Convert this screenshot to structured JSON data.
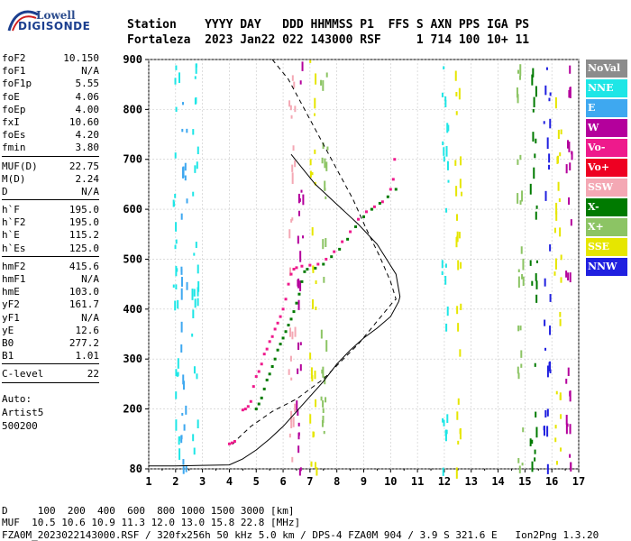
{
  "logo": {
    "line1": "Lowell",
    "line2": "DIGISONDE"
  },
  "header": {
    "line1": "Station    YYYY DAY   DDD HHMMSS P1  FFS S AXN PPS IGA PS",
    "line2": "Fortaleza  2023 Jan22 022 143000 RSF     1 714 100 10+ 11"
  },
  "params": {
    "group1": [
      {
        "k": "foF2",
        "v": "10.150"
      },
      {
        "k": "foF1",
        "v": "N/A"
      },
      {
        "k": "foF1p",
        "v": "5.55"
      },
      {
        "k": "foE",
        "v": "4.06"
      },
      {
        "k": "foEp",
        "v": "4.00"
      },
      {
        "k": "fxI",
        "v": "10.60"
      },
      {
        "k": "foEs",
        "v": "4.20"
      },
      {
        "k": "fmin",
        "v": "3.80"
      }
    ],
    "group2": [
      {
        "k": "MUF(D)",
        "v": "22.75"
      },
      {
        "k": "M(D)",
        "v": "2.24"
      },
      {
        "k": "D",
        "v": "N/A"
      }
    ],
    "group3": [
      {
        "k": "h`F",
        "v": "195.0"
      },
      {
        "k": "h`F2",
        "v": "195.0"
      },
      {
        "k": "h`E",
        "v": "115.2"
      },
      {
        "k": "h`Es",
        "v": "125.0"
      }
    ],
    "group4": [
      {
        "k": "hmF2",
        "v": "415.6"
      },
      {
        "k": "hmF1",
        "v": "N/A"
      },
      {
        "k": "hmE",
        "v": "103.0"
      },
      {
        "k": "yF2",
        "v": "161.7"
      },
      {
        "k": "yF1",
        "v": "N/A"
      },
      {
        "k": "yE",
        "v": "12.6"
      },
      {
        "k": "B0",
        "v": "277.2"
      },
      {
        "k": "B1",
        "v": "1.01"
      }
    ],
    "group5": [
      {
        "k": "C-level",
        "v": "22"
      }
    ]
  },
  "auto": {
    "line1": "Auto:",
    "line2": "Artist5",
    "line3": "500200"
  },
  "legend": [
    {
      "label": "NoVal",
      "color": "#8c8c8c"
    },
    {
      "label": "NNE",
      "color": "#1ee6e6"
    },
    {
      "label": "E",
      "color": "#3ea8f0"
    },
    {
      "label": "W",
      "color": "#b4009c"
    },
    {
      "label": "Vo-",
      "color": "#ee1a8c"
    },
    {
      "label": "Vo+",
      "color": "#ee0022"
    },
    {
      "label": "SSW",
      "color": "#f4a8b4"
    },
    {
      "label": "X-",
      "color": "#007a00"
    },
    {
      "label": "X+",
      "color": "#8cc464"
    },
    {
      "label": "SSE",
      "color": "#e6e600"
    },
    {
      "label": "NNW",
      "color": "#2020e0"
    }
  ],
  "bottom": {
    "line1": "D     100  200  400  600  800 1000 1500 3000 [km]",
    "line2": "MUF  10.5 10.6 10.9 11.3 12.0 13.0 15.8 22.8 [MHz]",
    "line3": "FZA0M_2023022143000.RSF / 320fx256h 50 kHz 5.0 km / DPS-4 FZA0M 904 / 3.9 S 321.6 E   Ion2Png 1.3.20"
  },
  "chart_data": {
    "type": "scatter",
    "xlabel": "",
    "ylabel": "",
    "xlim": [
      1,
      17
    ],
    "ylim": [
      80,
      900
    ],
    "x_ticks": [
      1,
      2,
      3,
      4,
      5,
      6,
      7,
      8,
      9,
      10,
      11,
      12,
      13,
      14,
      15,
      16,
      17
    ],
    "y_ticks": [
      80,
      200,
      300,
      400,
      500,
      600,
      700,
      800,
      900
    ],
    "grid": true,
    "series": [
      {
        "name": "O-trace",
        "color": "#ee1a8c",
        "points": [
          [
            4.0,
            130
          ],
          [
            4.1,
            132
          ],
          [
            4.2,
            135
          ],
          [
            4.5,
            198
          ],
          [
            4.6,
            200
          ],
          [
            4.7,
            205
          ],
          [
            4.8,
            215
          ],
          [
            4.9,
            245
          ],
          [
            5.0,
            265
          ],
          [
            5.1,
            275
          ],
          [
            5.2,
            290
          ],
          [
            5.3,
            310
          ],
          [
            5.4,
            320
          ],
          [
            5.5,
            335
          ],
          [
            5.6,
            345
          ],
          [
            5.7,
            360
          ],
          [
            5.8,
            372
          ],
          [
            5.9,
            385
          ],
          [
            6.0,
            400
          ],
          [
            6.1,
            420
          ],
          [
            6.2,
            450
          ],
          [
            6.3,
            470
          ],
          [
            6.4,
            480
          ],
          [
            6.5,
            483
          ],
          [
            6.7,
            486
          ],
          [
            7.0,
            488
          ],
          [
            7.3,
            490
          ],
          [
            7.6,
            500
          ],
          [
            7.9,
            515
          ],
          [
            8.2,
            535
          ],
          [
            8.5,
            555
          ],
          [
            8.8,
            580
          ],
          [
            9.1,
            595
          ],
          [
            9.4,
            605
          ],
          [
            9.7,
            615
          ],
          [
            10.0,
            640
          ],
          [
            10.1,
            660
          ],
          [
            10.15,
            700
          ]
        ]
      },
      {
        "name": "X-trace",
        "color": "#007a00",
        "points": [
          [
            5.0,
            200
          ],
          [
            5.1,
            210
          ],
          [
            5.2,
            222
          ],
          [
            5.3,
            240
          ],
          [
            5.4,
            258
          ],
          [
            5.5,
            270
          ],
          [
            5.6,
            285
          ],
          [
            5.7,
            300
          ],
          [
            5.8,
            318
          ],
          [
            5.9,
            330
          ],
          [
            6.0,
            342
          ],
          [
            6.1,
            355
          ],
          [
            6.2,
            368
          ],
          [
            6.3,
            380
          ],
          [
            6.4,
            395
          ],
          [
            6.5,
            412
          ],
          [
            6.6,
            430
          ],
          [
            6.7,
            455
          ],
          [
            6.8,
            475
          ],
          [
            6.9,
            480
          ],
          [
            7.2,
            482
          ],
          [
            7.5,
            490
          ],
          [
            7.8,
            505
          ],
          [
            8.1,
            520
          ],
          [
            8.4,
            540
          ],
          [
            8.7,
            565
          ],
          [
            9.0,
            585
          ],
          [
            9.3,
            600
          ],
          [
            9.6,
            612
          ],
          [
            9.9,
            625
          ],
          [
            10.2,
            640
          ]
        ]
      }
    ],
    "curves": [
      {
        "name": "profile",
        "style": "solid",
        "points": [
          [
            1,
            86
          ],
          [
            2,
            86
          ],
          [
            3,
            87
          ],
          [
            4,
            88
          ],
          [
            4.5,
            100
          ],
          [
            5,
            118
          ],
          [
            5.5,
            140
          ],
          [
            6,
            165
          ],
          [
            6.5,
            195
          ],
          [
            7,
            225
          ],
          [
            7.5,
            255
          ],
          [
            8,
            290
          ],
          [
            8.5,
            318
          ],
          [
            9,
            342
          ],
          [
            9.5,
            362
          ],
          [
            10,
            385
          ],
          [
            10.3,
            415
          ],
          [
            10.35,
            425
          ],
          [
            10.2,
            470
          ],
          [
            9.5,
            530
          ],
          [
            8.8,
            570
          ],
          [
            8,
            610
          ],
          [
            7.2,
            650
          ],
          [
            6.6,
            690
          ],
          [
            6.3,
            710
          ]
        ]
      },
      {
        "name": "model",
        "style": "dashed",
        "points": [
          [
            5.6,
            900
          ],
          [
            6.2,
            860
          ],
          [
            6.8,
            800
          ],
          [
            7.4,
            740
          ],
          [
            8.0,
            680
          ],
          [
            8.6,
            620
          ],
          [
            9.1,
            560
          ],
          [
            9.6,
            505
          ],
          [
            10.0,
            455
          ],
          [
            10.2,
            420
          ],
          [
            10.1,
            415
          ],
          [
            8.8,
            330
          ],
          [
            7.5,
            260
          ],
          [
            6.5,
            220
          ],
          [
            5.6,
            195
          ],
          [
            4.8,
            165
          ],
          [
            4.3,
            140
          ],
          [
            4.1,
            128
          ]
        ]
      }
    ],
    "noise_columns": [
      {
        "x": 2.0,
        "color": "#1ee6e6"
      },
      {
        "x": 2.3,
        "color": "#3ea8f0"
      },
      {
        "x": 2.7,
        "color": "#1ee6e6"
      },
      {
        "x": 6.3,
        "color": "#f4a8b4"
      },
      {
        "x": 6.6,
        "color": "#b4009c"
      },
      {
        "x": 7.1,
        "color": "#e6e600"
      },
      {
        "x": 7.5,
        "color": "#8cc464"
      },
      {
        "x": 12.0,
        "color": "#1ee6e6"
      },
      {
        "x": 12.5,
        "color": "#e6e600"
      },
      {
        "x": 14.8,
        "color": "#8cc464"
      },
      {
        "x": 15.3,
        "color": "#007a00"
      },
      {
        "x": 15.8,
        "color": "#2020e0"
      },
      {
        "x": 16.2,
        "color": "#e6e600"
      },
      {
        "x": 16.6,
        "color": "#b4009c"
      }
    ]
  }
}
